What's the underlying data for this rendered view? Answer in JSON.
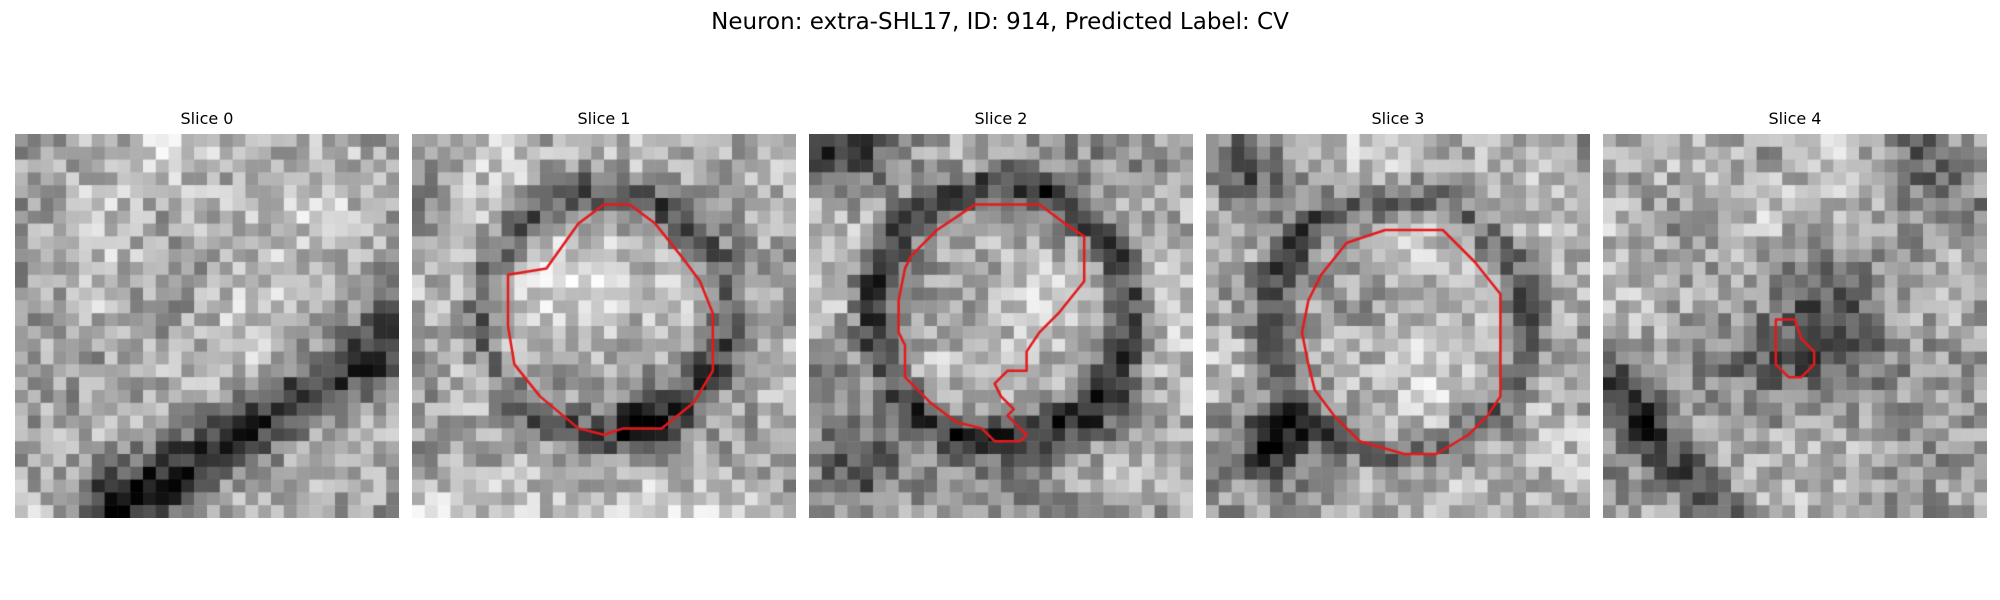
{
  "title": "Neuron: extra-SHL17, ID: 914, Predicted Label: CV",
  "outline_color": "#e41a1c",
  "panels": [
    {
      "title": "Slice 0",
      "has_outline": false
    },
    {
      "title": "Slice 1",
      "has_outline": true
    },
    {
      "title": "Slice 2",
      "has_outline": true
    },
    {
      "title": "Slice 3",
      "has_outline": true
    },
    {
      "title": "Slice 4",
      "has_outline": true
    }
  ]
}
